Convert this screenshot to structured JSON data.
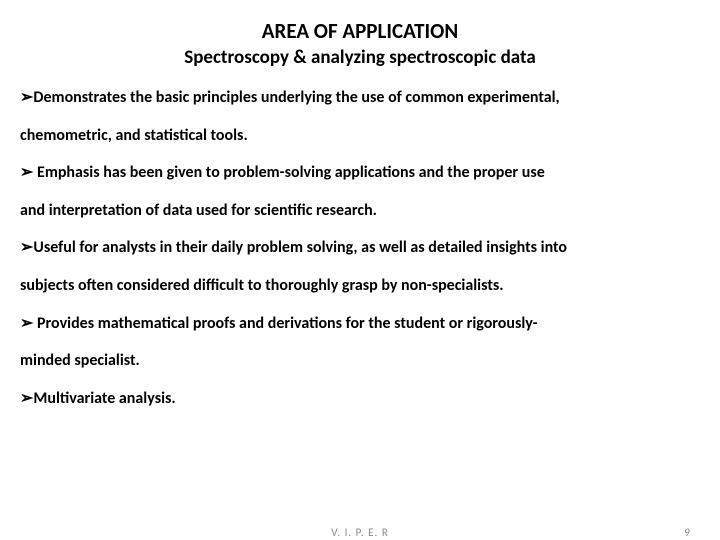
{
  "title": "AREA OF APPLICATION",
  "subtitle": "Spectroscopy & analyzing spectroscopic data",
  "bullets": {
    "b1a": "➢Demonstrates the basic principles underlying the use of common experimental,",
    "b1b": "chemometric, and statistical tools.",
    "b2a": "➢ Emphasis has been given to problem-solving applications and the proper use",
    "b2b": "and interpretation of data used for scientific research.",
    "b3a": "➢Useful for analysts in their daily problem solving, as well as detailed insights into",
    "b3b": "subjects often considered difficult to thoroughly grasp by non-specialists.",
    "b4a": "➢ Provides mathematical proofs and derivations for the student or rigorously-",
    "b4b": "minded specialist.",
    "b5": "➢Multivariate analysis."
  },
  "footer": {
    "center": "V. I. P. E. R",
    "page": "9"
  },
  "colors": {
    "text": "#000000",
    "footer": "#8a8a8a",
    "background": "#ffffff"
  },
  "typography": {
    "title_fontsize": 21,
    "subtitle_fontsize": 19,
    "body_fontsize": 16,
    "footer_fontsize": 11,
    "font_family": "Calibri",
    "weight": "bold"
  }
}
